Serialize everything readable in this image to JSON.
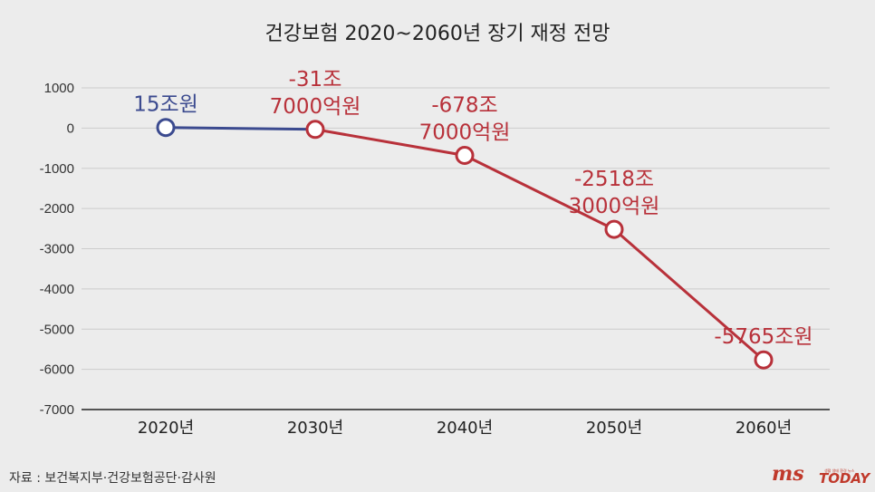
{
  "chart_data": {
    "type": "line",
    "title": "건강보험 2020~2060년 장기 재정 전망",
    "categories": [
      "2020년",
      "2030년",
      "2040년",
      "2050년",
      "2060년"
    ],
    "values": [
      15,
      -31.7,
      -678.7,
      -2518.3,
      -5765
    ],
    "data_labels": [
      [
        "15조원"
      ],
      [
        "-31조",
        "7000억원"
      ],
      [
        "-678조",
        "7000억원"
      ],
      [
        "-2518조",
        "3000억원"
      ],
      [
        "-5765조원"
      ]
    ],
    "ylim": [
      -7000,
      1000
    ],
    "yticks": [
      1000,
      0,
      -1000,
      -2000,
      -3000,
      -4000,
      -5000,
      -6000,
      -7000
    ],
    "ytick_labels": [
      "1000",
      "0",
      "-1000",
      "-2000",
      "-3000",
      "-4000",
      "-5000",
      "-6000",
      "-7000"
    ],
    "grid": true,
    "legend": "none",
    "colors": {
      "positive": "#3b4a8f",
      "negative": "#b8313a",
      "grid": "#cccccc",
      "background": "#ececec"
    }
  },
  "source": "자료 : 보건복지부·건강보험공단·감사원",
  "logo": {
    "main": "ms",
    "sub": "TODAY",
    "tagline": "생활 생태 환경 뉴스"
  }
}
